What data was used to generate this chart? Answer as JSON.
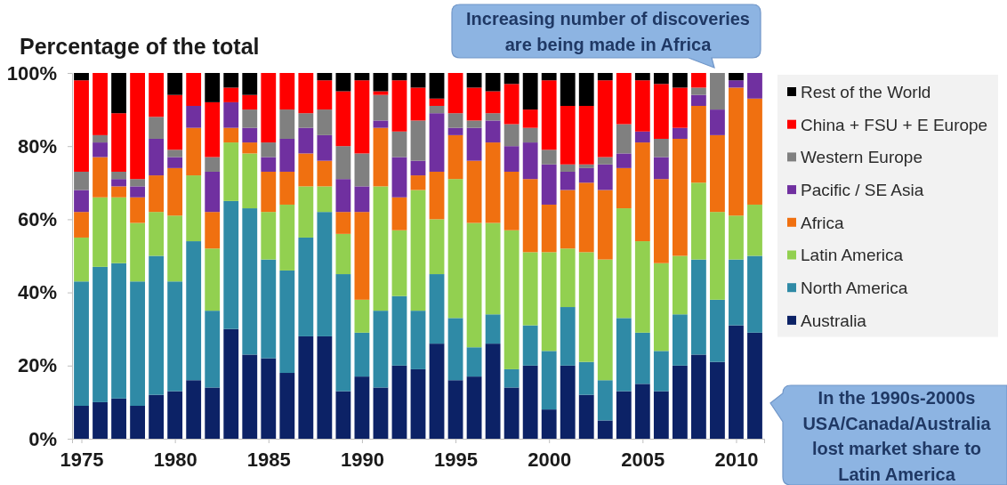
{
  "chart_data": {
    "type": "bar",
    "stacked": true,
    "ylabel": "Percentage of the total",
    "x": [
      1975,
      1976,
      1977,
      1978,
      1979,
      1980,
      1981,
      1982,
      1983,
      1984,
      1985,
      1986,
      1987,
      1988,
      1989,
      1990,
      1991,
      1992,
      1993,
      1994,
      1995,
      1996,
      1997,
      1998,
      1999,
      2000,
      2001,
      2002,
      2003,
      2004,
      2005,
      2006,
      2007,
      2008,
      2009,
      2010,
      2011
    ],
    "xlim": [
      1974.5,
      2011.5
    ],
    "xticks": [
      1975,
      1980,
      1985,
      1990,
      1995,
      2000,
      2005,
      2010
    ],
    "ylim": [
      0,
      100
    ],
    "yticks": [
      {
        "value": 0,
        "label": "0%"
      },
      {
        "value": 20,
        "label": "20%"
      },
      {
        "value": 40,
        "label": "40%"
      },
      {
        "value": 60,
        "label": "60%"
      },
      {
        "value": 80,
        "label": "80%"
      },
      {
        "value": 100,
        "label": "100%"
      }
    ],
    "legend": "right",
    "series": [
      {
        "name": "Australia",
        "color": "#0c2266",
        "values": [
          9,
          10,
          11,
          9,
          12,
          13,
          16,
          14,
          30,
          23,
          22,
          18,
          28,
          28,
          13,
          17,
          14,
          20,
          19,
          26,
          16,
          17,
          26,
          14,
          20,
          8,
          20,
          12,
          5,
          13,
          15,
          13,
          20,
          23,
          21,
          31,
          29
        ]
      },
      {
        "name": "North America",
        "color": "#2f8aa6",
        "values": [
          34,
          37,
          37,
          34,
          38,
          30,
          38,
          21,
          35,
          40,
          27,
          28,
          27,
          34,
          32,
          12,
          21,
          19,
          16,
          19,
          17,
          8,
          8,
          5,
          11,
          16,
          16,
          9,
          11,
          20,
          14,
          11,
          14,
          26,
          17,
          18,
          21
        ]
      },
      {
        "name": "Latin America",
        "color": "#92d050",
        "values": [
          12,
          19,
          18,
          16,
          12,
          18,
          18,
          17,
          16,
          15,
          13,
          18,
          14,
          7,
          11,
          9,
          34,
          18,
          33,
          15,
          38,
          34,
          25,
          38,
          20,
          27,
          16,
          30,
          33,
          30,
          25,
          24,
          16,
          21,
          24,
          12,
          14
        ]
      },
      {
        "name": "Africa",
        "color": "#f07010",
        "values": [
          7,
          11,
          3,
          7,
          10,
          13,
          13,
          10,
          4,
          3,
          11,
          9,
          9,
          7,
          6,
          24,
          16,
          9,
          4,
          13,
          12,
          17,
          22,
          16,
          20,
          13,
          16,
          19,
          19,
          11,
          27,
          23,
          32,
          21,
          21,
          35,
          29
        ]
      },
      {
        "name": "Pacific / SE Asia",
        "color": "#7030a0",
        "values": [
          6,
          4,
          2,
          3,
          10,
          3,
          6,
          11,
          7,
          4,
          4,
          9,
          7,
          7,
          9,
          7,
          2,
          11,
          4,
          16,
          2,
          9,
          6,
          7,
          10,
          11,
          5,
          4,
          7,
          4,
          3,
          6,
          3,
          3,
          7,
          2,
          7
        ]
      },
      {
        "name": "Western Europe",
        "color": "#808080",
        "values": [
          5,
          2,
          2,
          2,
          6,
          2,
          0,
          4,
          0,
          5,
          4,
          8,
          4,
          7,
          9,
          9,
          7,
          7,
          11,
          2,
          4,
          2,
          2,
          6,
          4,
          4,
          2,
          1,
          2,
          8,
          0,
          5,
          0,
          2,
          10,
          0,
          0
        ]
      },
      {
        "name": "China + FSU + E Europe",
        "color": "#ff0000",
        "values": [
          25,
          17,
          16,
          29,
          12,
          15,
          9,
          15,
          4,
          4,
          19,
          10,
          11,
          8,
          15,
          20,
          1,
          14,
          9,
          2,
          11,
          9,
          6,
          11,
          5,
          19,
          16,
          16,
          21,
          14,
          14,
          15,
          11,
          4,
          0,
          0,
          0
        ]
      },
      {
        "name": "Rest of the World",
        "color": "#000000",
        "values": [
          2,
          0,
          11,
          0,
          0,
          6,
          0,
          8,
          4,
          6,
          0,
          0,
          0,
          2,
          5,
          2,
          5,
          2,
          4,
          7,
          0,
          4,
          5,
          3,
          10,
          2,
          9,
          9,
          2,
          0,
          2,
          3,
          4,
          0,
          0,
          2,
          0
        ]
      }
    ],
    "annotations": [
      "Increasing number of discoveries\nare being made in Africa",
      "In the 1990s-2000s\nUSA/Canada/Australia\nlost market share to\nLatin America"
    ]
  }
}
